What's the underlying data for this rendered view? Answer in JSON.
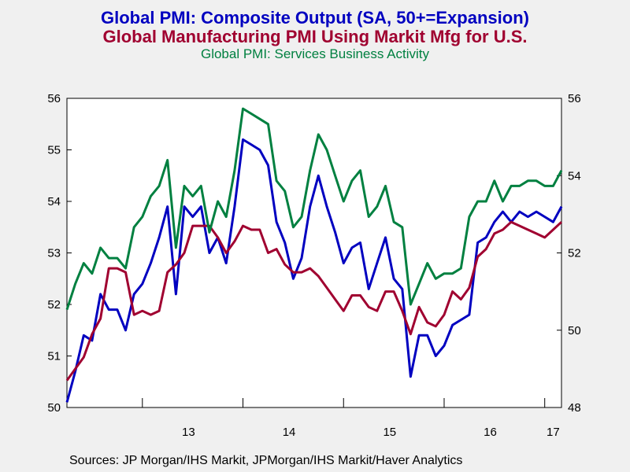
{
  "titles": {
    "line1": "Global PMI: Composite Output (SA, 50+=Expansion)",
    "line2": "Global Manufacturing PMI Using Markit Mfg for U.S.",
    "line3": "Global PMI: Services Business Activity"
  },
  "colors": {
    "composite": "#0000c0",
    "manufacturing": "#a00030",
    "services": "#008040",
    "background": "#f0f0f0",
    "plot": "#ffffff"
  },
  "source": "Sources:  JP Morgan/IHS Markit, JPMorgan/IHS Markit/Haver Analytics",
  "chart_data": {
    "type": "line",
    "x_labels": [
      "13",
      "14",
      "15",
      "16",
      "17"
    ],
    "y_left": {
      "min": 50,
      "max": 56,
      "ticks": [
        50,
        51,
        52,
        53,
        54,
        55,
        56
      ]
    },
    "y_right": {
      "min": 48,
      "max": 56,
      "ticks": [
        48,
        50,
        52,
        54,
        56
      ]
    },
    "x_start": "2012-04",
    "series": [
      {
        "name": "Global PMI: Composite Output (SA, 50+=Expansion)",
        "axis": "left",
        "color": "#0000c0",
        "values": [
          50.1,
          50.7,
          51.4,
          51.3,
          52.2,
          51.9,
          51.9,
          51.5,
          52.2,
          52.4,
          52.8,
          53.3,
          53.9,
          52.2,
          53.9,
          53.7,
          53.9,
          53.0,
          53.3,
          52.8,
          53.9,
          55.2,
          55.1,
          55.0,
          54.7,
          53.6,
          53.2,
          52.5,
          52.9,
          53.9,
          54.5,
          53.9,
          53.4,
          52.8,
          53.1,
          53.2,
          52.3,
          52.8,
          53.3,
          52.5,
          52.3,
          50.6,
          51.4,
          51.4,
          51.0,
          51.2,
          51.6,
          51.7,
          51.8,
          53.2,
          53.3,
          53.6,
          53.8,
          53.6,
          53.8,
          53.7,
          53.8,
          53.7,
          53.6,
          53.9
        ]
      },
      {
        "name": "Global Manufacturing PMI Using Markit Mfg for U.S.",
        "axis": "right",
        "color": "#a00030",
        "values": [
          48.7,
          49.0,
          49.3,
          49.9,
          50.3,
          51.6,
          51.6,
          51.5,
          50.4,
          50.5,
          50.4,
          50.5,
          51.5,
          51.7,
          52.0,
          52.7,
          52.7,
          52.7,
          52.4,
          52.0,
          52.3,
          52.7,
          52.6,
          52.6,
          52.0,
          52.1,
          51.7,
          51.5,
          51.5,
          51.6,
          51.4,
          51.1,
          50.8,
          50.5,
          50.9,
          50.9,
          50.6,
          50.5,
          51.0,
          51.0,
          50.5,
          49.9,
          50.6,
          50.2,
          50.1,
          50.4,
          51.0,
          50.8,
          51.1,
          51.9,
          52.1,
          52.5,
          52.6,
          52.8,
          52.7,
          52.6,
          52.5,
          52.4,
          52.6,
          52.8
        ]
      },
      {
        "name": "Global PMI: Services Business Activity",
        "axis": "left",
        "color": "#008040",
        "values": [
          51.9,
          52.4,
          52.8,
          52.6,
          53.1,
          52.9,
          52.9,
          52.7,
          53.5,
          53.7,
          54.1,
          54.3,
          54.8,
          53.1,
          54.3,
          54.1,
          54.3,
          53.4,
          54.0,
          53.7,
          54.6,
          55.8,
          55.7,
          55.6,
          55.5,
          54.4,
          54.2,
          53.5,
          53.7,
          54.6,
          55.3,
          55.0,
          54.5,
          54.0,
          54.4,
          54.6,
          53.7,
          53.9,
          54.3,
          53.6,
          53.5,
          52.0,
          52.4,
          52.8,
          52.5,
          52.6,
          52.6,
          52.7,
          53.7,
          54.0,
          54.0,
          54.4,
          54.0,
          54.3,
          54.3,
          54.4,
          54.4,
          54.3,
          54.3,
          54.6
        ]
      }
    ]
  }
}
